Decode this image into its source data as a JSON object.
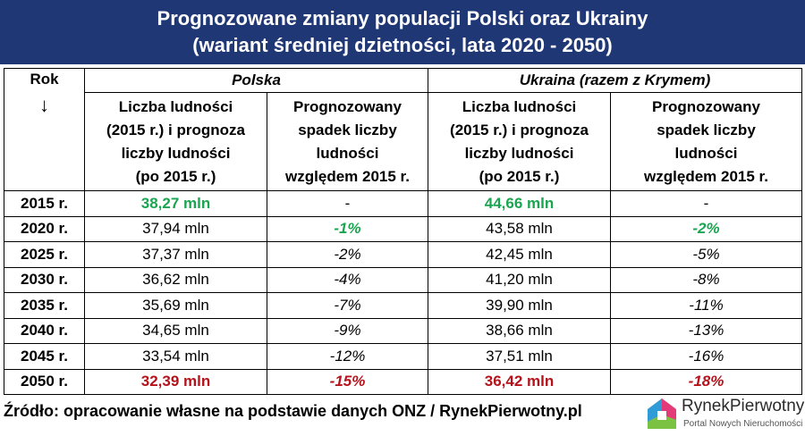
{
  "title": {
    "line1": "Prognozowane zmiany populacji Polski oraz Ukrainy",
    "line2": "(wariant średniej dzietności, lata 2020 - 2050)"
  },
  "table": {
    "rok_label": "Rok",
    "rok_arrow": "↓",
    "polska": "Polska",
    "ukraina": "Ukraina (razem z Krymem)",
    "col_population": [
      "Liczba ludności",
      "(2015 r.) i prognoza",
      "liczby ludności",
      "(po 2015 r.)"
    ],
    "col_decline": [
      "Prognozowany",
      "spadek liczby",
      "ludności",
      "względem 2015 r."
    ],
    "rows": [
      {
        "year": "2015 r.",
        "pl_pop": "38,27 mln",
        "pl_change": "-",
        "ua_pop": "44,66 mln",
        "ua_change": "-"
      },
      {
        "year": "2020 r.",
        "pl_pop": "37,94 mln",
        "pl_change": "-1%",
        "ua_pop": "43,58 mln",
        "ua_change": "-2%"
      },
      {
        "year": "2025 r.",
        "pl_pop": "37,37 mln",
        "pl_change": "-2%",
        "ua_pop": "42,45 mln",
        "ua_change": "-5%"
      },
      {
        "year": "2030 r.",
        "pl_pop": "36,62 mln",
        "pl_change": "-4%",
        "ua_pop": "41,20 mln",
        "ua_change": "-8%"
      },
      {
        "year": "2035 r.",
        "pl_pop": "35,69 mln",
        "pl_change": "-7%",
        "ua_pop": "39,90 mln",
        "ua_change": "-11%"
      },
      {
        "year": "2040 r.",
        "pl_pop": "34,65 mln",
        "pl_change": "-9%",
        "ua_pop": "38,66 mln",
        "ua_change": "-13%"
      },
      {
        "year": "2045 r.",
        "pl_pop": "33,54 mln",
        "pl_change": "-12%",
        "ua_pop": "37,51 mln",
        "ua_change": "-16%"
      },
      {
        "year": "2050 r.",
        "pl_pop": "32,39 mln",
        "pl_change": "-15%",
        "ua_pop": "36,42 mln",
        "ua_change": "-18%"
      }
    ]
  },
  "source": "Źródło: opracowanie własne na podstawie danych ONZ / RynekPierwotny.pl",
  "logo": {
    "brand": "RynekPierwotny",
    "tagline": "Portal Nowych Nieruchomości"
  },
  "colors": {
    "header_bg": "#1f3774",
    "green": "#1aa550",
    "red": "#b5121b"
  }
}
